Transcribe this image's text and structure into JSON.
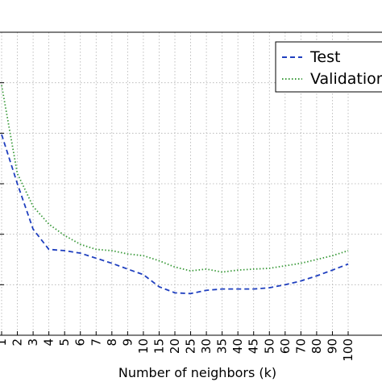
{
  "chart_data": {
    "type": "line",
    "xlabel": "Number of neighbors (k)",
    "ylabel": "",
    "categories": [
      "1",
      "2",
      "3",
      "4",
      "5",
      "6",
      "7",
      "8",
      "9",
      "10",
      "15",
      "20",
      "25",
      "30",
      "35",
      "40",
      "45",
      "50",
      "60",
      "70",
      "80",
      "90",
      "100"
    ],
    "series": [
      {
        "name": "Test",
        "color": "#1f3fbf",
        "style": "dashed",
        "values": [
          0.795,
          0.6,
          0.42,
          0.34,
          0.335,
          0.325,
          0.305,
          0.285,
          0.262,
          0.24,
          0.192,
          0.168,
          0.165,
          0.178,
          0.183,
          0.183,
          0.183,
          0.188,
          0.2,
          0.215,
          0.235,
          0.258,
          0.282
        ]
      },
      {
        "name": "Validation",
        "color": "#3a9a3a",
        "style": "dotted",
        "values": [
          0.99,
          0.64,
          0.51,
          0.44,
          0.395,
          0.36,
          0.34,
          0.335,
          0.322,
          0.315,
          0.295,
          0.27,
          0.255,
          0.262,
          0.25,
          0.258,
          0.262,
          0.265,
          0.275,
          0.285,
          0.3,
          0.315,
          0.335
        ]
      }
    ],
    "ylim": [
      0,
      1.2
    ],
    "grid": true,
    "legend_position": "top-right"
  }
}
